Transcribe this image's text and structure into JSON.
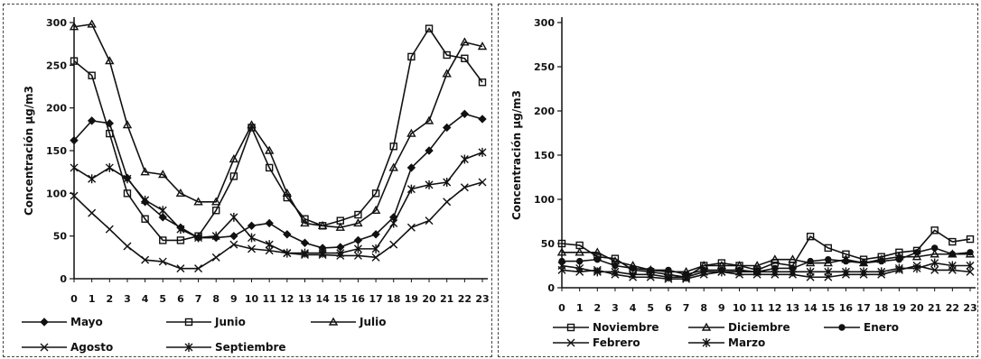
{
  "chart_data": [
    {
      "type": "line",
      "title": "",
      "xlabel": "",
      "ylabel": "Concentración µg/m3",
      "ylim": [
        0,
        300
      ],
      "yticks": [
        0,
        50,
        100,
        150,
        200,
        250,
        300
      ],
      "x": [
        0,
        1,
        2,
        3,
        4,
        5,
        6,
        7,
        8,
        9,
        10,
        11,
        12,
        13,
        14,
        15,
        16,
        17,
        18,
        19,
        20,
        21,
        22,
        23
      ],
      "grid": false,
      "legend": "bottom",
      "series": [
        {
          "name": "Mayo",
          "marker": "diamond",
          "values": [
            162,
            185,
            182,
            118,
            90,
            72,
            60,
            48,
            48,
            50,
            62,
            65,
            52,
            42,
            36,
            37,
            45,
            52,
            72,
            130,
            150,
            177,
            193,
            187
          ]
        },
        {
          "name": "Junio",
          "marker": "square",
          "values": [
            255,
            238,
            170,
            100,
            70,
            45,
            45,
            50,
            80,
            120,
            177,
            130,
            95,
            70,
            62,
            68,
            75,
            100,
            155,
            260,
            293,
            262,
            258,
            230
          ]
        },
        {
          "name": "Julio",
          "marker": "triangle",
          "values": [
            295,
            298,
            255,
            180,
            125,
            122,
            100,
            90,
            90,
            140,
            180,
            150,
            100,
            65,
            62,
            60,
            65,
            80,
            130,
            170,
            185,
            240,
            277,
            272
          ]
        },
        {
          "name": "Agosto",
          "marker": "x",
          "values": [
            97,
            77,
            58,
            38,
            22,
            20,
            12,
            12,
            25,
            40,
            35,
            33,
            30,
            28,
            28,
            27,
            27,
            25,
            40,
            60,
            68,
            90,
            107,
            113
          ]
        },
        {
          "name": "Septiembre",
          "marker": "star",
          "values": [
            130,
            117,
            130,
            117,
            92,
            80,
            58,
            48,
            50,
            72,
            48,
            40,
            30,
            30,
            30,
            30,
            35,
            35,
            65,
            105,
            110,
            113,
            140,
            148
          ]
        }
      ]
    },
    {
      "type": "line",
      "title": "",
      "xlabel": "",
      "ylabel": "Concentración µg/m3",
      "ylim": [
        0,
        300
      ],
      "yticks": [
        0,
        50,
        100,
        150,
        200,
        250,
        300
      ],
      "x": [
        0,
        1,
        2,
        3,
        4,
        5,
        6,
        7,
        8,
        9,
        10,
        11,
        12,
        13,
        14,
        15,
        16,
        17,
        18,
        19,
        20,
        21,
        22,
        23
      ],
      "grid": false,
      "legend": "bottom",
      "series": [
        {
          "name": "Noviembre",
          "marker": "square",
          "values": [
            50,
            48,
            35,
            33,
            20,
            18,
            15,
            12,
            25,
            28,
            25,
            20,
            28,
            25,
            58,
            45,
            38,
            32,
            35,
            40,
            42,
            65,
            52,
            55
          ]
        },
        {
          "name": "Diciembre",
          "marker": "triangle",
          "values": [
            40,
            40,
            40,
            30,
            25,
            20,
            18,
            18,
            25,
            25,
            25,
            25,
            32,
            32,
            28,
            28,
            32,
            28,
            32,
            35,
            35,
            38,
            38,
            38
          ]
        },
        {
          "name": "Enero",
          "marker": "circle",
          "values": [
            30,
            30,
            32,
            25,
            22,
            20,
            20,
            15,
            20,
            20,
            20,
            18,
            22,
            22,
            30,
            32,
            30,
            28,
            30,
            32,
            40,
            45,
            38,
            40
          ]
        },
        {
          "name": "Febrero",
          "marker": "x",
          "values": [
            20,
            18,
            20,
            15,
            12,
            12,
            10,
            10,
            15,
            18,
            15,
            15,
            15,
            15,
            12,
            12,
            15,
            15,
            15,
            20,
            25,
            20,
            20,
            18
          ]
        },
        {
          "name": "Marzo",
          "marker": "star",
          "values": [
            25,
            22,
            18,
            18,
            15,
            15,
            12,
            12,
            18,
            18,
            18,
            18,
            18,
            18,
            18,
            18,
            18,
            18,
            18,
            22,
            22,
            28,
            25,
            25
          ]
        }
      ]
    }
  ]
}
